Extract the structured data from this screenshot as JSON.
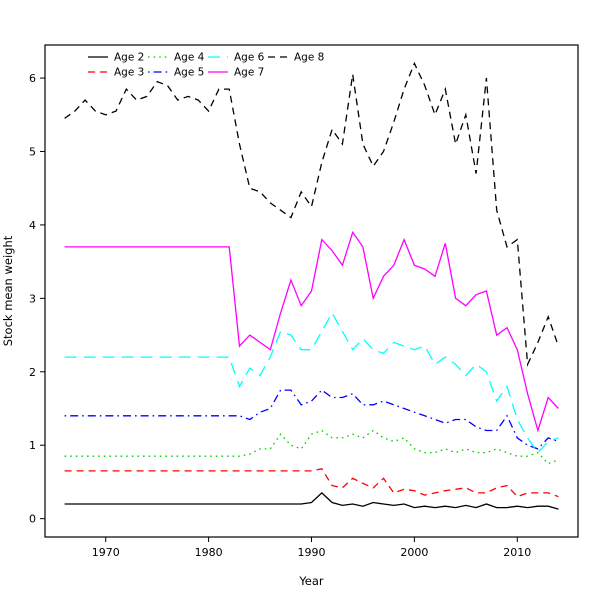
{
  "chart_data": {
    "type": "line",
    "title": "",
    "xlabel": "Year",
    "ylabel": "Stock mean weight",
    "grid": false,
    "legend_position": "top-left-inside",
    "legend_columns": 4,
    "xlim": [
      1964.1,
      2015.9
    ],
    "ylim": [
      -0.25,
      6.45
    ],
    "xticks": [
      1970,
      1980,
      1990,
      2000,
      2010
    ],
    "yticks": [
      0,
      1,
      2,
      3,
      4,
      5,
      6
    ],
    "x": [
      1966,
      1967,
      1968,
      1969,
      1970,
      1971,
      1972,
      1973,
      1974,
      1975,
      1976,
      1977,
      1978,
      1979,
      1980,
      1981,
      1982,
      1983,
      1984,
      1985,
      1986,
      1987,
      1988,
      1989,
      1990,
      1991,
      1992,
      1993,
      1994,
      1995,
      1996,
      1997,
      1998,
      1999,
      2000,
      2001,
      2002,
      2003,
      2004,
      2005,
      2006,
      2007,
      2008,
      2009,
      2010,
      2011,
      2012,
      2013,
      2014
    ],
    "series": [
      {
        "name": "Age 2",
        "color": "#000000",
        "dash": "solid",
        "values": [
          0.2,
          0.2,
          0.2,
          0.2,
          0.2,
          0.2,
          0.2,
          0.2,
          0.2,
          0.2,
          0.2,
          0.2,
          0.2,
          0.2,
          0.2,
          0.2,
          0.2,
          0.2,
          0.2,
          0.2,
          0.2,
          0.2,
          0.2,
          0.2,
          0.22,
          0.35,
          0.22,
          0.18,
          0.2,
          0.17,
          0.22,
          0.2,
          0.18,
          0.2,
          0.15,
          0.17,
          0.15,
          0.17,
          0.15,
          0.18,
          0.15,
          0.2,
          0.15,
          0.15,
          0.17,
          0.15,
          0.17,
          0.17,
          0.13
        ]
      },
      {
        "name": "Age 3",
        "color": "#FF0000",
        "dash": "dashed",
        "values": [
          0.65,
          0.65,
          0.65,
          0.65,
          0.65,
          0.65,
          0.65,
          0.65,
          0.65,
          0.65,
          0.65,
          0.65,
          0.65,
          0.65,
          0.65,
          0.65,
          0.65,
          0.65,
          0.65,
          0.65,
          0.65,
          0.65,
          0.65,
          0.65,
          0.65,
          0.68,
          0.45,
          0.42,
          0.55,
          0.48,
          0.42,
          0.55,
          0.35,
          0.4,
          0.38,
          0.32,
          0.35,
          0.38,
          0.4,
          0.42,
          0.35,
          0.35,
          0.42,
          0.45,
          0.3,
          0.35,
          0.35,
          0.35,
          0.3
        ]
      },
      {
        "name": "Age 4",
        "color": "#00CD00",
        "dash": "dotted",
        "values": [
          0.85,
          0.85,
          0.85,
          0.85,
          0.85,
          0.85,
          0.85,
          0.85,
          0.85,
          0.85,
          0.85,
          0.85,
          0.85,
          0.85,
          0.85,
          0.85,
          0.85,
          0.85,
          0.88,
          0.95,
          0.95,
          1.15,
          1.0,
          0.95,
          1.15,
          1.2,
          1.1,
          1.1,
          1.15,
          1.1,
          1.2,
          1.1,
          1.05,
          1.1,
          0.95,
          0.9,
          0.9,
          0.95,
          0.9,
          0.95,
          0.9,
          0.9,
          0.95,
          0.9,
          0.85,
          0.85,
          0.9,
          0.75,
          0.8
        ]
      },
      {
        "name": "Age 5",
        "color": "#0000FF",
        "dash": "dashdot",
        "values": [
          1.4,
          1.4,
          1.4,
          1.4,
          1.4,
          1.4,
          1.4,
          1.4,
          1.4,
          1.4,
          1.4,
          1.4,
          1.4,
          1.4,
          1.4,
          1.4,
          1.4,
          1.4,
          1.35,
          1.45,
          1.5,
          1.75,
          1.75,
          1.55,
          1.6,
          1.75,
          1.65,
          1.65,
          1.7,
          1.55,
          1.55,
          1.6,
          1.55,
          1.5,
          1.45,
          1.4,
          1.35,
          1.3,
          1.35,
          1.35,
          1.25,
          1.2,
          1.2,
          1.4,
          1.1,
          1.0,
          0.95,
          1.1,
          1.05
        ]
      },
      {
        "name": "Age 6",
        "color": "#00FFFF",
        "dash": "longdash",
        "values": [
          2.2,
          2.2,
          2.2,
          2.2,
          2.2,
          2.2,
          2.2,
          2.2,
          2.2,
          2.2,
          2.2,
          2.2,
          2.2,
          2.2,
          2.2,
          2.2,
          2.2,
          1.8,
          2.05,
          1.95,
          2.2,
          2.55,
          2.5,
          2.3,
          2.3,
          2.55,
          2.8,
          2.55,
          2.3,
          2.45,
          2.3,
          2.25,
          2.4,
          2.35,
          2.3,
          2.35,
          2.1,
          2.2,
          2.1,
          1.95,
          2.1,
          2.0,
          1.6,
          1.8,
          1.35,
          1.1,
          0.9,
          1.05,
          1.1
        ]
      },
      {
        "name": "Age 7",
        "color": "#FF00FF",
        "dash": "solid",
        "values": [
          3.7,
          3.7,
          3.7,
          3.7,
          3.7,
          3.7,
          3.7,
          3.7,
          3.7,
          3.7,
          3.7,
          3.7,
          3.7,
          3.7,
          3.7,
          3.7,
          3.7,
          2.35,
          2.5,
          2.4,
          2.3,
          2.8,
          3.25,
          2.9,
          3.1,
          3.8,
          3.65,
          3.45,
          3.9,
          3.7,
          3.0,
          3.3,
          3.45,
          3.8,
          3.45,
          3.4,
          3.3,
          3.75,
          3.0,
          2.9,
          3.05,
          3.1,
          2.5,
          2.6,
          2.3,
          1.7,
          1.2,
          1.65,
          1.5
        ]
      },
      {
        "name": "Age 8",
        "color": "#000000",
        "dash": "dashed",
        "values": [
          5.45,
          5.55,
          5.7,
          5.55,
          5.5,
          5.55,
          5.85,
          5.7,
          5.75,
          5.95,
          5.9,
          5.7,
          5.75,
          5.7,
          5.55,
          5.85,
          5.85,
          5.1,
          4.5,
          4.45,
          4.3,
          4.2,
          4.1,
          4.45,
          4.25,
          4.85,
          5.3,
          5.1,
          6.05,
          5.1,
          4.8,
          5.0,
          5.4,
          5.85,
          6.2,
          5.9,
          5.5,
          5.85,
          5.1,
          5.5,
          4.7,
          6.0,
          4.2,
          3.7,
          3.8,
          2.1,
          2.4,
          2.75,
          2.35
        ]
      }
    ]
  }
}
